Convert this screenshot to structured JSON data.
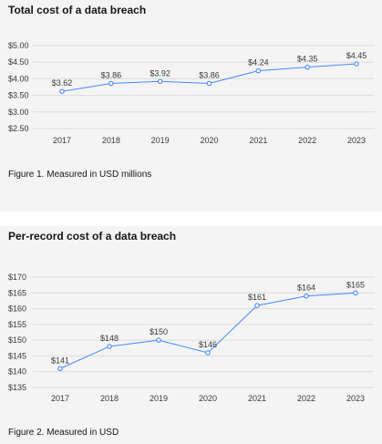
{
  "chart_data": [
    {
      "type": "line",
      "title": "Total cost of a data breach",
      "caption": "Figure 1. Measured in USD millions",
      "categories": [
        "2017",
        "2018",
        "2019",
        "2020",
        "2021",
        "2022",
        "2023"
      ],
      "values": [
        3.62,
        3.86,
        3.92,
        3.86,
        4.24,
        4.35,
        4.45
      ],
      "data_labels": [
        "$3.62",
        "$3.86",
        "$3.92",
        "$3.86",
        "$4.24",
        "$4.35",
        "$4.45"
      ],
      "yticks": [
        2.5,
        3.0,
        3.5,
        4.0,
        4.5,
        5.0
      ],
      "ytick_labels": [
        "$2.50",
        "$3.00",
        "$3.50",
        "$4.00",
        "$4.50",
        "$5.00"
      ],
      "ylim": [
        2.5,
        5.0
      ],
      "grid": true,
      "color": "#4589ff"
    },
    {
      "type": "line",
      "title": "Per-record cost of a data breach",
      "caption": "Figure 2. Measured in USD",
      "categories": [
        "2017",
        "2018",
        "2019",
        "2020",
        "2021",
        "2022",
        "2023"
      ],
      "values": [
        141,
        148,
        150,
        146,
        161,
        164,
        165
      ],
      "data_labels": [
        "$141",
        "$148",
        "$150",
        "$146",
        "$161",
        "$164",
        "$165"
      ],
      "yticks": [
        135,
        140,
        145,
        150,
        155,
        160,
        165,
        170
      ],
      "ytick_labels": [
        "$135",
        "$140",
        "$145",
        "$150",
        "$155",
        "$160",
        "$165",
        "$170"
      ],
      "ylim": [
        135,
        170
      ],
      "grid": true,
      "color": "#4589ff"
    }
  ]
}
